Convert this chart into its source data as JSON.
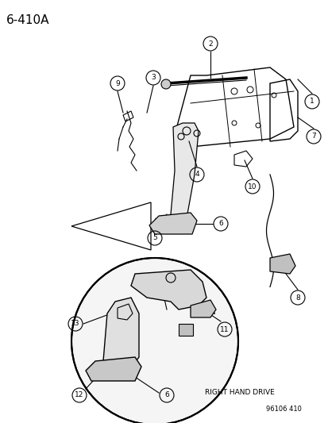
{
  "title": "6-410A",
  "part_number": "96106 410",
  "right_hand_drive_label": "RIGHT HAND DRIVE",
  "background_color": "#ffffff",
  "line_color": "#000000",
  "callout_numbers_upper": [
    1,
    2,
    3,
    4,
    5,
    6,
    7,
    8,
    9,
    10
  ],
  "callout_numbers_lower": [
    6,
    11,
    12,
    13
  ],
  "fig_width": 4.14,
  "fig_height": 5.33,
  "dpi": 100
}
